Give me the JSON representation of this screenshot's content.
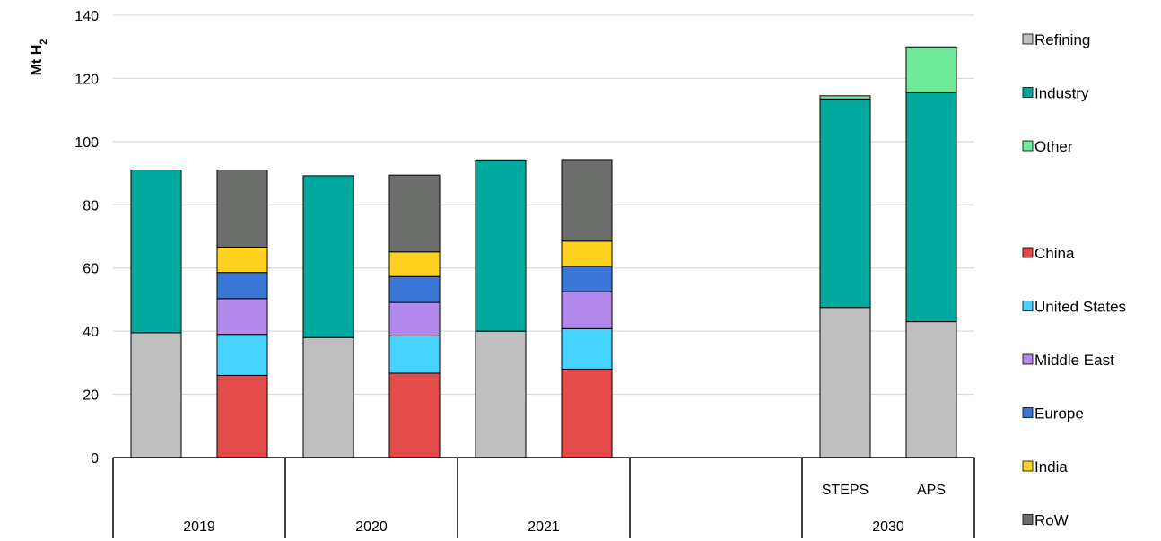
{
  "chart_data": {
    "type": "bar",
    "stacked": true,
    "y_axis_title_main": "Mt H",
    "y_axis_title_sub": "2",
    "ylim": [
      0,
      140
    ],
    "yticks": [
      0,
      20,
      40,
      60,
      80,
      100,
      120,
      140
    ],
    "grid": true,
    "legend_position": "right",
    "groups": [
      {
        "label": "2019",
        "bars": [
          "2019-sector",
          "2019-region"
        ]
      },
      {
        "label": "2020",
        "bars": [
          "2020-sector",
          "2020-region"
        ]
      },
      {
        "label": "2021",
        "bars": [
          "2021-sector",
          "2021-region"
        ]
      },
      {
        "label": "",
        "bars": []
      },
      {
        "label": "2030",
        "bars": [
          "2030-steps",
          "2030-aps"
        ]
      }
    ],
    "bars": [
      {
        "id": "2019-sector",
        "label": "",
        "segments": {
          "Refining": 39.5,
          "Industry": 51.5
        }
      },
      {
        "id": "2019-region",
        "label": "",
        "segments": {
          "China": 26,
          "United States": 13,
          "Middle East": 11.3,
          "Europe": 8.3,
          "India": 8,
          "RoW": 24.4
        }
      },
      {
        "id": "2020-sector",
        "label": "",
        "segments": {
          "Refining": 38,
          "Industry": 51.2
        }
      },
      {
        "id": "2020-region",
        "label": "",
        "segments": {
          "China": 26.7,
          "United States": 11.8,
          "Middle East": 10.6,
          "Europe": 8.2,
          "India": 7.8,
          "RoW": 24.3
        }
      },
      {
        "id": "2021-sector",
        "label": "",
        "segments": {
          "Refining": 40,
          "Industry": 54.2
        }
      },
      {
        "id": "2021-region",
        "label": "",
        "segments": {
          "China": 28,
          "United States": 12.8,
          "Middle East": 11.7,
          "Europe": 8,
          "India": 8,
          "RoW": 25.8
        }
      },
      {
        "id": "2030-steps",
        "label": "STEPS",
        "segments": {
          "Refining": 47.5,
          "Industry": 66,
          "Other": 1
        }
      },
      {
        "id": "2030-aps",
        "label": "APS",
        "segments": {
          "Refining": 43,
          "Industry": 72.5,
          "Other": 14.5
        }
      }
    ],
    "series": [
      {
        "name": "Refining",
        "color": "#bfbfbf"
      },
      {
        "name": "Industry",
        "color": "#00a99d"
      },
      {
        "name": "Other",
        "color": "#6fe99a"
      },
      {
        "name": "China",
        "color": "#e24b4a"
      },
      {
        "name": "United States",
        "color": "#47d3ff"
      },
      {
        "name": "Middle East",
        "color": "#b388eb"
      },
      {
        "name": "Europe",
        "color": "#3a77d6"
      },
      {
        "name": "India",
        "color": "#ffd21f"
      },
      {
        "name": "RoW",
        "color": "#6d6f6c"
      }
    ],
    "legend": [
      {
        "name": "Refining",
        "color": "#bfbfbf"
      },
      {
        "name": "Industry",
        "color": "#00a99d"
      },
      {
        "name": "Other",
        "color": "#6fe99a"
      },
      {
        "name": "",
        "color": ""
      },
      {
        "name": "China",
        "color": "#e24b4a"
      },
      {
        "name": "United States",
        "color": "#47d3ff"
      },
      {
        "name": "Middle East",
        "color": "#b388eb"
      },
      {
        "name": "Europe",
        "color": "#3a77d6"
      },
      {
        "name": "India",
        "color": "#ffd21f"
      },
      {
        "name": "RoW",
        "color": "#6d6f6c"
      }
    ]
  }
}
